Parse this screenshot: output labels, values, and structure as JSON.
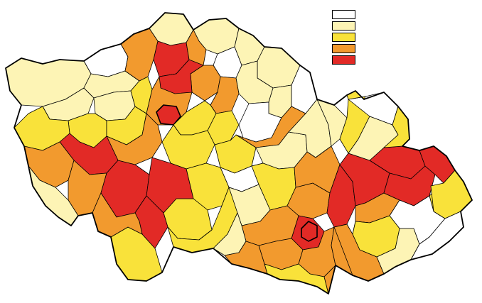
{
  "colors": {
    "class_1": "#ffffff",
    "class_2": "#fdf4b5",
    "class_3": "#f9e23a",
    "class_4": "#f29a2e",
    "class_5": "#e22a26"
  },
  "legend": {
    "entries": [
      {
        "class": "class_1",
        "color": "#ffffff",
        "label": ""
      },
      {
        "class": "class_2",
        "color": "#fdf4b5",
        "label": ""
      },
      {
        "class": "class_3",
        "color": "#f9e23a",
        "label": ""
      },
      {
        "class": "class_4",
        "color": "#f29a2e",
        "label": ""
      },
      {
        "class": "class_5",
        "color": "#e22a26",
        "label": ""
      }
    ]
  },
  "districts": [
    {
      "id": "d01",
      "class": "class_1"
    },
    {
      "id": "d02",
      "class": "class_2"
    },
    {
      "id": "d03",
      "class": "class_2"
    },
    {
      "id": "d04",
      "class": "class_2"
    },
    {
      "id": "d05",
      "class": "class_2"
    },
    {
      "id": "d06",
      "class": "class_2"
    },
    {
      "id": "d07",
      "class": "class_3"
    },
    {
      "id": "d08",
      "class": "class_3"
    },
    {
      "id": "d09",
      "class": "class_3"
    },
    {
      "id": "d10",
      "class": "class_3"
    },
    {
      "id": "d11",
      "class": "class_2"
    },
    {
      "id": "d12",
      "class": "class_4"
    },
    {
      "id": "d13",
      "class": "class_5"
    },
    {
      "id": "d14",
      "class": "class_4"
    },
    {
      "id": "d15",
      "class": "class_2"
    },
    {
      "id": "d16",
      "class": "class_2"
    },
    {
      "id": "d17",
      "class": "class_1"
    },
    {
      "id": "d18",
      "class": "class_1"
    },
    {
      "id": "d19",
      "class": "class_2"
    },
    {
      "id": "d20",
      "class": "class_2"
    },
    {
      "id": "d21",
      "class": "class_4"
    },
    {
      "id": "d22",
      "class": "class_5"
    },
    {
      "id": "d23",
      "class": "class_4"
    },
    {
      "id": "d24",
      "class": "class_5"
    },
    {
      "id": "d25",
      "class": "class_4"
    },
    {
      "id": "d26",
      "class": "class_4"
    },
    {
      "id": "d27",
      "class": "class_3"
    },
    {
      "id": "d28",
      "class": "class_3"
    },
    {
      "id": "d29",
      "class": "class_1"
    },
    {
      "id": "d30",
      "class": "class_4"
    },
    {
      "id": "d31",
      "class": "class_5"
    },
    {
      "id": "d32",
      "class": "class_4"
    },
    {
      "id": "d33",
      "class": "class_3"
    },
    {
      "id": "d34",
      "class": "class_3"
    },
    {
      "id": "d35",
      "class": "class_4"
    },
    {
      "id": "d36",
      "class": "class_2"
    },
    {
      "id": "d37",
      "class": "class_1"
    },
    {
      "id": "d38",
      "class": "class_2"
    },
    {
      "id": "d39",
      "class": "class_3"
    },
    {
      "id": "d40",
      "class": "class_3"
    },
    {
      "id": "d41",
      "class": "class_3"
    },
    {
      "id": "d42",
      "class": "class_5"
    },
    {
      "id": "d43",
      "class": "class_5"
    },
    {
      "id": "d44",
      "class": "class_3"
    },
    {
      "id": "d45",
      "class": "class_5"
    },
    {
      "id": "d46",
      "class": "class_4"
    },
    {
      "id": "d47",
      "class": "class_3"
    },
    {
      "id": "d48",
      "class": "class_2"
    },
    {
      "id": "d49",
      "class": "class_2"
    },
    {
      "id": "d50",
      "class": "class_4"
    },
    {
      "id": "d51",
      "class": "class_5"
    },
    {
      "id": "d52",
      "class": "class_4"
    },
    {
      "id": "d53",
      "class": "class_3"
    },
    {
      "id": "d54",
      "class": "class_4"
    },
    {
      "id": "d55",
      "class": "class_5"
    },
    {
      "id": "d56",
      "class": "class_5"
    },
    {
      "id": "d57",
      "class": "class_4"
    },
    {
      "id": "d58",
      "class": "class_5"
    },
    {
      "id": "d59",
      "class": "class_2"
    },
    {
      "id": "d60",
      "class": "class_5"
    },
    {
      "id": "d61",
      "class": "class_5"
    },
    {
      "id": "d62",
      "class": "class_4"
    },
    {
      "id": "d63",
      "class": "class_3"
    },
    {
      "id": "d64",
      "class": "class_2"
    },
    {
      "id": "d65",
      "class": "class_1"
    },
    {
      "id": "d66",
      "class": "class_3"
    },
    {
      "id": "d67",
      "class": "class_1"
    },
    {
      "id": "d68",
      "class": "class_2"
    },
    {
      "id": "d69",
      "class": "class_2"
    },
    {
      "id": "d70",
      "class": "class_3"
    },
    {
      "id": "d71",
      "class": "class_3"
    },
    {
      "id": "d72",
      "class": "class_4"
    },
    {
      "id": "d73",
      "class": "class_3"
    },
    {
      "id": "d74",
      "class": "class_2"
    },
    {
      "id": "d75",
      "class": "class_1"
    },
    {
      "id": "d76",
      "class": "class_4"
    },
    {
      "id": "d77",
      "class": "class_3"
    }
  ]
}
